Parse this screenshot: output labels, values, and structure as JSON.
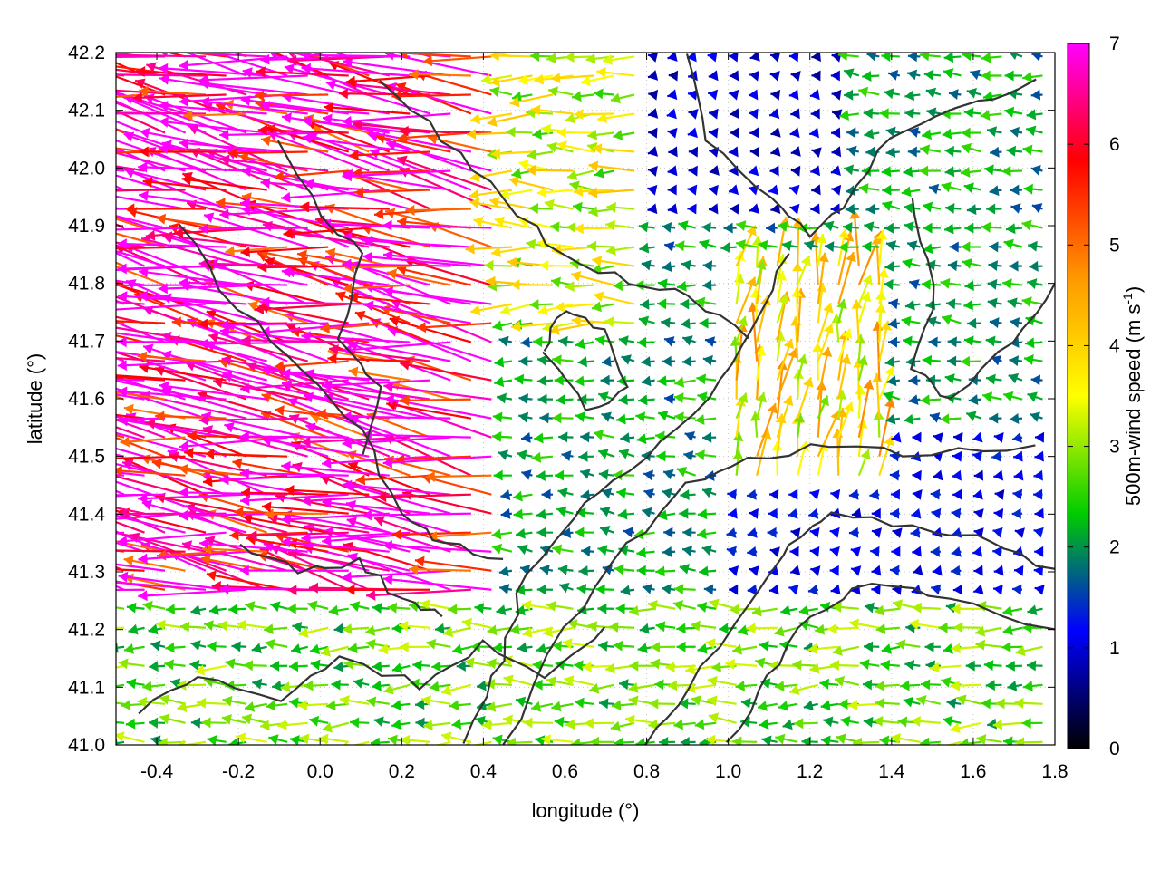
{
  "chart_data": {
    "type": "vector-field",
    "xlabel": "longitude (°)",
    "ylabel": "latitude (°)",
    "colorbar_label_main": "500m-wind speed (m s",
    "colorbar_label_sup": "-1",
    "colorbar_label_close": ")",
    "xlim": [
      -0.5,
      1.8
    ],
    "ylim": [
      41.0,
      42.2
    ],
    "xticks": [
      "-0.4",
      "-0.2",
      "0.0",
      "0.2",
      "0.4",
      "0.6",
      "0.8",
      "1.0",
      "1.2",
      "1.4",
      "1.6",
      "1.8"
    ],
    "xtick_values": [
      -0.4,
      -0.2,
      0.0,
      0.2,
      0.4,
      0.6,
      0.8,
      1.0,
      1.2,
      1.4,
      1.6,
      1.8
    ],
    "yticks": [
      "41.0",
      "41.1",
      "41.2",
      "41.3",
      "41.4",
      "41.5",
      "41.6",
      "41.7",
      "41.8",
      "41.9",
      "42.0",
      "42.1",
      "42.2"
    ],
    "ytick_values": [
      41.0,
      41.1,
      41.2,
      41.3,
      41.4,
      41.5,
      41.6,
      41.7,
      41.8,
      41.9,
      42.0,
      42.1,
      42.2
    ],
    "colorbar_ticks": [
      "0",
      "1",
      "2",
      "3",
      "4",
      "5",
      "6",
      "7"
    ],
    "colorbar_range": [
      0,
      7
    ],
    "colormap": [
      "#000000",
      "#0000ff",
      "#00cc00",
      "#ffff00",
      "#ff9900",
      "#ff0000",
      "#ff00ff"
    ],
    "grid": "dotted",
    "contour_color": "#333333",
    "vector_regions": [
      {
        "name": "strong westward flow, west",
        "lon": [
          -0.5,
          0.45
        ],
        "lat": [
          41.25,
          42.2
        ],
        "speed": 7,
        "direction_deg": 170
      },
      {
        "name": "moderate west flow, north",
        "lon": [
          0.2,
          0.8
        ],
        "lat": [
          41.7,
          42.2
        ],
        "speed": 3.5,
        "direction_deg": 180
      },
      {
        "name": "weak variable flow, northeast",
        "lon": [
          0.8,
          1.3
        ],
        "lat": [
          41.9,
          42.2
        ],
        "speed": 1.0,
        "direction_deg": 180
      },
      {
        "name": "northward flow, center",
        "lon": [
          1.0,
          1.4
        ],
        "lat": [
          41.45,
          41.85
        ],
        "speed": 4.0,
        "direction_deg": 80
      },
      {
        "name": "weak westward flow, east",
        "lon": [
          1.0,
          1.8
        ],
        "lat": [
          41.25,
          41.55
        ],
        "speed": 1.2,
        "direction_deg": 180
      },
      {
        "name": "moderate westward flow, south",
        "lon": [
          -0.5,
          1.8
        ],
        "lat": [
          41.0,
          41.25
        ],
        "speed": 2.8,
        "direction_deg": 180
      }
    ]
  }
}
